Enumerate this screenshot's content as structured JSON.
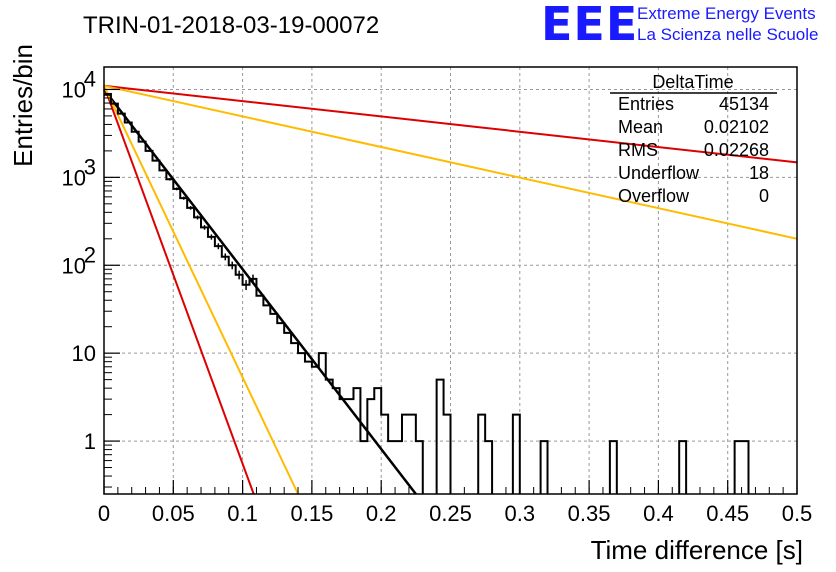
{
  "header": {
    "title": "TRIN-01-2018-03-19-00072",
    "logo_text": "EEE",
    "logo_line1": "Extreme Energy Events",
    "logo_line2": "La Scienza nelle Scuole",
    "logo_color": "#1a1aff"
  },
  "stats_box": {
    "title": "DeltaTime",
    "rows": [
      {
        "label": "Entries",
        "value": "45134"
      },
      {
        "label": "Mean",
        "value": "0.02102"
      },
      {
        "label": "RMS",
        "value": "0.02268"
      },
      {
        "label": "Underflow",
        "value": "18"
      },
      {
        "label": "Overflow",
        "value": "0"
      }
    ]
  },
  "chart_data": {
    "type": "line",
    "title": "TRIN-01-2018-03-19-00072",
    "xlabel": "Time difference [s]",
    "ylabel": "Entries/bin",
    "xlim": [
      0,
      0.5
    ],
    "ylim": [
      0.25,
      18000
    ],
    "yscale": "log",
    "grid": true,
    "x_ticks": [
      {
        "v": 0,
        "label": "0"
      },
      {
        "v": 0.05,
        "label": "0.05"
      },
      {
        "v": 0.1,
        "label": "0.1"
      },
      {
        "v": 0.15,
        "label": "0.15"
      },
      {
        "v": 0.2,
        "label": "0.2"
      },
      {
        "v": 0.25,
        "label": "0.25"
      },
      {
        "v": 0.3,
        "label": "0.3"
      },
      {
        "v": 0.35,
        "label": "0.35"
      },
      {
        "v": 0.4,
        "label": "0.4"
      },
      {
        "v": 0.45,
        "label": "0.45"
      },
      {
        "v": 0.5,
        "label": "0.5"
      }
    ],
    "y_ticks": [
      {
        "v": 1,
        "label": "1",
        "sup": ""
      },
      {
        "v": 10,
        "label": "10",
        "sup": ""
      },
      {
        "v": 100,
        "label": "10",
        "sup": "2"
      },
      {
        "v": 1000,
        "label": "10",
        "sup": "3"
      },
      {
        "v": 10000,
        "label": "10",
        "sup": "4"
      }
    ],
    "histogram": {
      "name": "DeltaTime",
      "color": "#000000",
      "bin_edges": [
        0,
        0.005,
        0.01,
        0.015,
        0.02,
        0.025,
        0.03,
        0.035,
        0.04,
        0.045,
        0.05,
        0.055,
        0.06,
        0.065,
        0.07,
        0.075,
        0.08,
        0.085,
        0.09,
        0.095,
        0.1,
        0.105,
        0.11,
        0.115,
        0.12,
        0.125,
        0.13,
        0.135,
        0.14,
        0.145,
        0.15,
        0.155,
        0.16,
        0.165,
        0.17,
        0.175,
        0.18,
        0.185,
        0.19,
        0.195,
        0.2,
        0.205,
        0.21,
        0.215,
        0.22,
        0.225,
        0.23,
        0.235,
        0.24,
        0.245,
        0.25,
        0.255,
        0.26,
        0.265,
        0.27,
        0.275,
        0.28,
        0.285,
        0.29,
        0.295,
        0.3,
        0.305,
        0.31,
        0.315,
        0.32,
        0.325,
        0.33,
        0.335,
        0.34,
        0.345,
        0.35,
        0.355,
        0.36,
        0.365,
        0.37,
        0.375,
        0.38,
        0.385,
        0.39,
        0.395,
        0.4,
        0.405,
        0.41,
        0.415,
        0.42,
        0.425,
        0.43,
        0.435,
        0.44,
        0.445,
        0.45,
        0.455,
        0.46,
        0.465,
        0.47,
        0.475,
        0.48,
        0.485,
        0.49,
        0.495,
        0.5
      ],
      "counts": [
        8700,
        6900,
        5300,
        4200,
        3300,
        2550,
        2000,
        1550,
        1200,
        950,
        740,
        580,
        450,
        350,
        270,
        210,
        165,
        125,
        100,
        78,
        60,
        70,
        45,
        35,
        28,
        22,
        17,
        13,
        10,
        8,
        7,
        10,
        5,
        4,
        3,
        3,
        4,
        1,
        3,
        4,
        2,
        1,
        1,
        2,
        2,
        1,
        0,
        0,
        5,
        2,
        0,
        0,
        0,
        0,
        2,
        1,
        0,
        0,
        0,
        2,
        0,
        0,
        0,
        1,
        0,
        0,
        0,
        0,
        0,
        0,
        0,
        0,
        0,
        1,
        0,
        0,
        0,
        0,
        0,
        0,
        0,
        0,
        0,
        1,
        0,
        0,
        0,
        0,
        0,
        0,
        0,
        1,
        1,
        0,
        0,
        0,
        0,
        0,
        0,
        0
      ]
    },
    "fit_curves": [
      {
        "color": "#000000",
        "x": [
          0,
          0.225
        ],
        "y": [
          10000,
          0.25
        ]
      },
      {
        "color": "#dd0000",
        "x": [
          0,
          0.108
        ],
        "y": [
          11000,
          0.25
        ]
      },
      {
        "color": "#ffbb00",
        "x": [
          0,
          0.14
        ],
        "y": [
          11000,
          0.25
        ]
      },
      {
        "color": "#dd0000",
        "x": [
          0,
          0.5
        ],
        "y": [
          11000,
          1480
        ]
      },
      {
        "color": "#ffbb00",
        "x": [
          0,
          0.5
        ],
        "y": [
          11000,
          200
        ]
      }
    ]
  }
}
